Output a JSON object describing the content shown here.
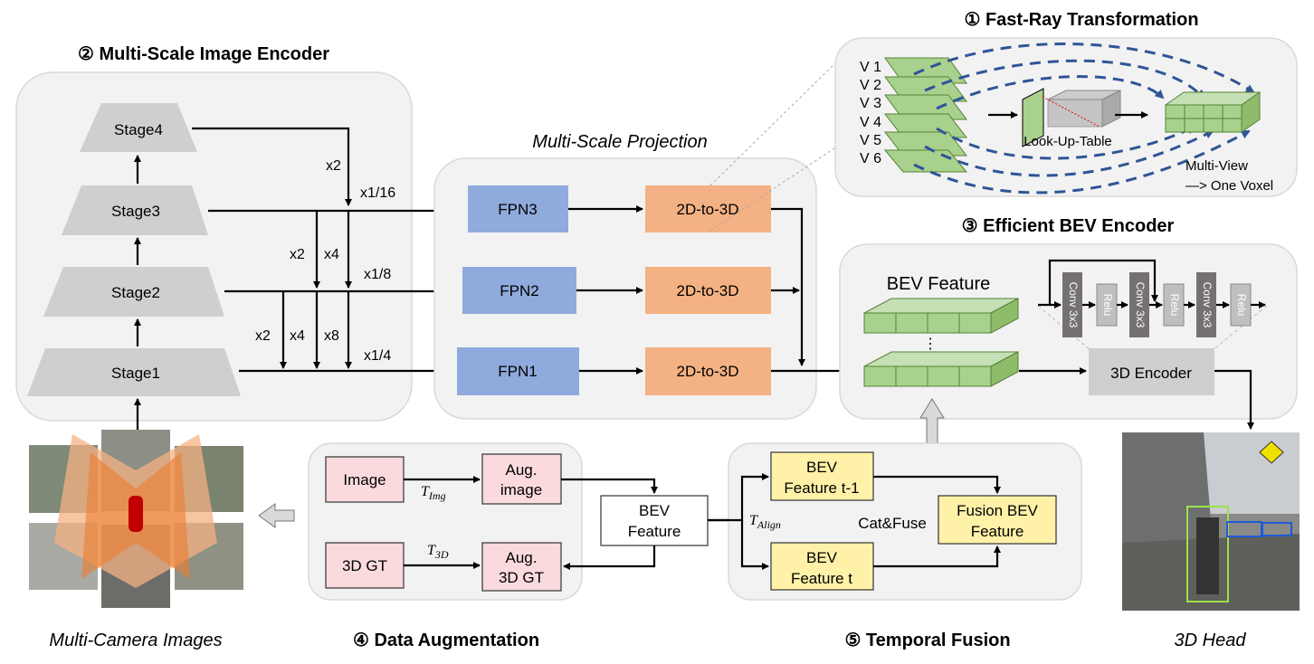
{
  "titles": {
    "fast_ray": "① Fast-Ray Transformation",
    "encoder": "② Multi-Scale Image Encoder",
    "projection": "Multi-Scale Projection",
    "bev_encoder": "③ Efficient BEV  Encoder",
    "data_aug": "④ Data Augmentation",
    "temporal": "⑤ Temporal Fusion",
    "cameras": "Multi-Camera Images",
    "head": "3D Head"
  },
  "encoder": {
    "stages": [
      "Stage4",
      "Stage3",
      "Stage2",
      "Stage1"
    ],
    "scales": [
      "x2",
      "x1/16",
      "x2",
      "x4",
      "x1/8",
      "x2",
      "x4",
      "x8",
      "x1/4"
    ]
  },
  "projection": {
    "fpn": [
      "FPN3",
      "FPN2",
      "FPN1"
    ],
    "lift": [
      "2D-to-3D",
      "2D-to-3D",
      "2D-to-3D"
    ]
  },
  "fast_ray": {
    "views": [
      "V 1",
      "V 2",
      "V 3",
      "V 4",
      "V 5",
      "V 6"
    ],
    "lut": "Look-Up-Table",
    "caption1": "Multi-View",
    "caption2": "—> One Voxel"
  },
  "bev_encoder": {
    "bev_feature": "BEV Feature",
    "dots": "⋮",
    "layers": [
      "Conv 3x3",
      "Relu",
      "Conv 3x3",
      "Relu",
      "Conv 3x3",
      "Relu"
    ],
    "encoder": "3D Encoder"
  },
  "data_aug": {
    "image": "Image",
    "aug_image_1": "Aug.",
    "aug_image_2": "image",
    "gt": "3D GT",
    "aug_gt_1": "Aug.",
    "aug_gt_2": "3D GT",
    "bev_1": "BEV",
    "bev_2": "Feature",
    "t_img": "T",
    "t_img_sub": "Img",
    "t_3d": "T",
    "t_3d_sub": "3D"
  },
  "temporal": {
    "prev_1": "BEV",
    "prev_2": "Feature t-1",
    "cur_1": "BEV",
    "cur_2": "Feature t",
    "fusion_1": "Fusion BEV",
    "fusion_2": "Feature",
    "cat_fuse": "Cat&Fuse",
    "t_align": "T",
    "t_align_sub": "Align"
  },
  "colors": {
    "stage": "#d0cece",
    "fpn": "#8faadc",
    "lift": "#f4b183",
    "aug": "#fadadd",
    "temporal": "#fff2a8",
    "bev_grid": "#a9d18e",
    "ray": "#2f5597"
  }
}
